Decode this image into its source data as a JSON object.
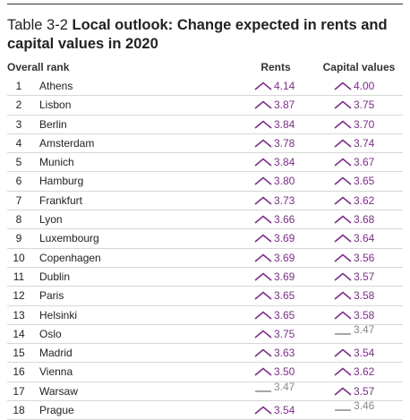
{
  "title": {
    "number": "Table 3-2",
    "text": "Local outlook: Change expected in rents and capital values in 2020"
  },
  "columns": {
    "rank": "Overall rank",
    "rents": "Rents",
    "capital": "Capital values"
  },
  "colors": {
    "up": "#7a2f86",
    "flat": "#8a8a8a"
  },
  "rows": [
    {
      "rank": "1",
      "city": "Athens",
      "rent": {
        "value": "4.14",
        "trend": "up"
      },
      "capital": {
        "value": "4.00",
        "trend": "up"
      }
    },
    {
      "rank": "2",
      "city": "Lisbon",
      "rent": {
        "value": "3.87",
        "trend": "up"
      },
      "capital": {
        "value": "3.75",
        "trend": "up"
      }
    },
    {
      "rank": "3",
      "city": "Berlin",
      "rent": {
        "value": "3.84",
        "trend": "up"
      },
      "capital": {
        "value": "3.70",
        "trend": "up"
      }
    },
    {
      "rank": "4",
      "city": "Amsterdam",
      "rent": {
        "value": "3.78",
        "trend": "up"
      },
      "capital": {
        "value": "3.74",
        "trend": "up"
      }
    },
    {
      "rank": "5",
      "city": "Munich",
      "rent": {
        "value": "3.84",
        "trend": "up"
      },
      "capital": {
        "value": "3.67",
        "trend": "up"
      }
    },
    {
      "rank": "6",
      "city": "Hamburg",
      "rent": {
        "value": "3.80",
        "trend": "up"
      },
      "capital": {
        "value": "3.65",
        "trend": "up"
      }
    },
    {
      "rank": "7",
      "city": "Frankfurt",
      "rent": {
        "value": "3.73",
        "trend": "up"
      },
      "capital": {
        "value": "3.62",
        "trend": "up"
      }
    },
    {
      "rank": "8",
      "city": "Lyon",
      "rent": {
        "value": "3.66",
        "trend": "up"
      },
      "capital": {
        "value": "3.68",
        "trend": "up"
      }
    },
    {
      "rank": "9",
      "city": "Luxembourg",
      "rent": {
        "value": "3.69",
        "trend": "up"
      },
      "capital": {
        "value": "3.64",
        "trend": "up"
      }
    },
    {
      "rank": "10",
      "city": "Copenhagen",
      "rent": {
        "value": "3.69",
        "trend": "up"
      },
      "capital": {
        "value": "3.56",
        "trend": "up"
      }
    },
    {
      "rank": "11",
      "city": "Dublin",
      "rent": {
        "value": "3.69",
        "trend": "up"
      },
      "capital": {
        "value": "3.57",
        "trend": "up"
      }
    },
    {
      "rank": "12",
      "city": "Paris",
      "rent": {
        "value": "3.65",
        "trend": "up"
      },
      "capital": {
        "value": "3.58",
        "trend": "up"
      }
    },
    {
      "rank": "13",
      "city": "Helsinki",
      "rent": {
        "value": "3.65",
        "trend": "up"
      },
      "capital": {
        "value": "3.58",
        "trend": "up"
      }
    },
    {
      "rank": "14",
      "city": "Oslo",
      "rent": {
        "value": "3.75",
        "trend": "up"
      },
      "capital": {
        "value": "3.47",
        "trend": "flat"
      }
    },
    {
      "rank": "15",
      "city": "Madrid",
      "rent": {
        "value": "3.63",
        "trend": "up"
      },
      "capital": {
        "value": "3.54",
        "trend": "up"
      }
    },
    {
      "rank": "16",
      "city": "Vienna",
      "rent": {
        "value": "3.50",
        "trend": "up"
      },
      "capital": {
        "value": "3.62",
        "trend": "up"
      }
    },
    {
      "rank": "17",
      "city": "Warsaw",
      "rent": {
        "value": "3.47",
        "trend": "flat"
      },
      "capital": {
        "value": "3.57",
        "trend": "up"
      }
    },
    {
      "rank": "18",
      "city": "Prague",
      "rent": {
        "value": "3.54",
        "trend": "up"
      },
      "capital": {
        "value": "3.46",
        "trend": "flat"
      }
    }
  ]
}
